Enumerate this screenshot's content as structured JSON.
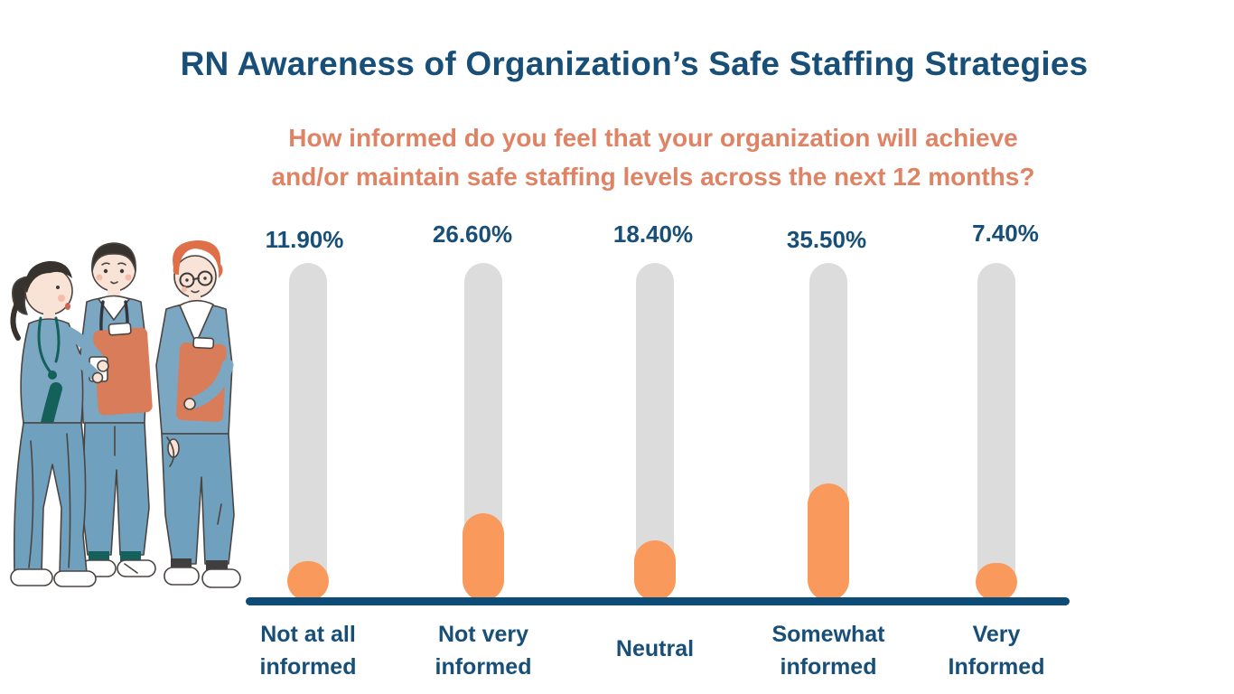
{
  "chart_data": {
    "type": "bar",
    "title": "RN Awareness of Organization’s Safe Staffing Strategies",
    "subtitle_lines": [
      "How informed do you feel that your organization will achieve",
      "and/or maintain safe staffing levels across the next 12 months?"
    ],
    "categories": [
      "Not at all informed",
      "Not very informed",
      "Neutral",
      "Somewhat informed",
      "Very Informed"
    ],
    "category_lines": [
      [
        "Not at all",
        "informed"
      ],
      [
        "Not very",
        "informed"
      ],
      [
        "Neutral"
      ],
      [
        "Somewhat",
        "informed"
      ],
      [
        "Very",
        "Informed"
      ]
    ],
    "values": [
      11.9,
      26.6,
      18.4,
      35.5,
      7.4
    ],
    "value_labels": [
      "11.90%",
      "26.60%",
      "18.40%",
      "35.50%",
      "7.40%"
    ],
    "xlabel": "",
    "ylabel": "",
    "ylim": [
      0,
      100
    ],
    "grid": false,
    "legend": false,
    "bar_color": "#F9995B",
    "track_color": "#DCDCDC",
    "baseline_color": "#0E4C78",
    "value_label_color": "#184F78",
    "category_label_color": "#184F78",
    "title_color": "#184F78",
    "subtitle_color": "#DF8365"
  },
  "illustration": {
    "name": "three nurses in scrubs talking, holding clipboards and a coffee cup",
    "scrub_color": "#7BA7C3",
    "pants_color": "#6FA0BD",
    "clipboard_color": "#D97C59",
    "accent_teal": "#14605B",
    "hair_orange": "#DF6F48"
  }
}
